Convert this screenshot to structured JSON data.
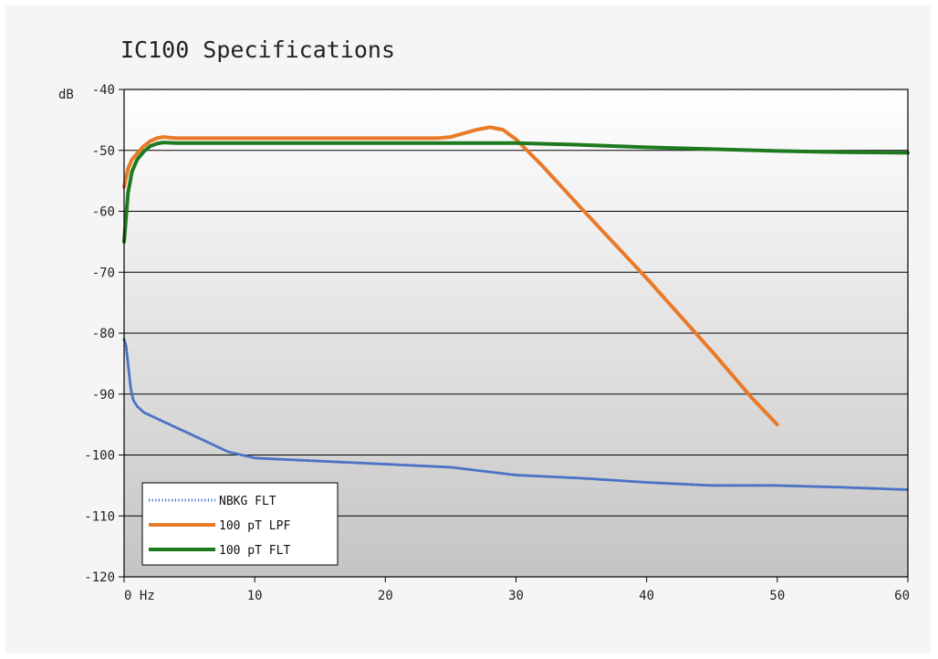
{
  "chart_data": {
    "type": "line",
    "title": "IC100 Specifications",
    "xlabel": "",
    "ylabel": "dB",
    "xlim": [
      0,
      60
    ],
    "ylim": [
      -120,
      -40
    ],
    "x_ticks": [
      0,
      10,
      20,
      30,
      40,
      50,
      60
    ],
    "x_tick_labels": [
      "0 Hz",
      "10",
      "20",
      "30",
      "40",
      "50",
      "60"
    ],
    "y_ticks": [
      -40,
      -50,
      -60,
      -70,
      -80,
      -90,
      -100,
      -110,
      -120
    ],
    "y_tick_labels": [
      "-40",
      "-50",
      "-60",
      "-70",
      "-80",
      "-90",
      "-100",
      "-110",
      "-120"
    ],
    "y_axis_unit_label": "dB",
    "grid": "horizontal",
    "legend_position": "bottom-left",
    "series": [
      {
        "name": "NBKG FLT",
        "color": "#4a72c4",
        "style": "dotted",
        "x": [
          0,
          0.15,
          0.3,
          0.5,
          0.7,
          1,
          1.5,
          2,
          3,
          4,
          5,
          6,
          7,
          8,
          9,
          10,
          12,
          15,
          20,
          25,
          30,
          35,
          40,
          45,
          50,
          55,
          60
        ],
        "y": [
          -81,
          -82,
          -85,
          -89,
          -91,
          -92,
          -93,
          -93.5,
          -94.5,
          -95.5,
          -96.5,
          -97.5,
          -98.5,
          -99.5,
          -100,
          -100.5,
          -100.7,
          -101,
          -101.5,
          -102,
          -103.3,
          -103.8,
          -104.5,
          -105,
          -105,
          -105.3,
          -105.7
        ]
      },
      {
        "name": "100 pT LPF",
        "color": "#e87a28",
        "style": "solid",
        "x": [
          0,
          0.3,
          0.6,
          1,
          1.5,
          2,
          2.5,
          3,
          4,
          6,
          10,
          15,
          20,
          24,
          25,
          26,
          27,
          28,
          29,
          30,
          32,
          35,
          40,
          45,
          48,
          50
        ],
        "y": [
          -56,
          -53,
          -51.5,
          -50.5,
          -49.3,
          -48.5,
          -48,
          -47.8,
          -48,
          -48,
          -48,
          -48,
          -48,
          -48,
          -47.8,
          -47.2,
          -46.6,
          -46.2,
          -46.6,
          -48.2,
          -52.5,
          -59.5,
          -71,
          -83,
          -90.5,
          -95
        ]
      },
      {
        "name": "100 pT FLT",
        "color": "#1e7a1e",
        "style": "solid",
        "x": [
          0,
          0.3,
          0.6,
          1,
          1.5,
          2,
          2.5,
          3,
          4,
          6,
          10,
          20,
          30,
          35,
          40,
          45,
          50,
          55,
          60
        ],
        "y": [
          -65,
          -57,
          -53.5,
          -51.5,
          -50.2,
          -49.3,
          -48.9,
          -48.7,
          -48.8,
          -48.8,
          -48.8,
          -48.8,
          -48.8,
          -49.1,
          -49.5,
          -49.8,
          -50.1,
          -50.3,
          -50.4
        ]
      }
    ]
  }
}
